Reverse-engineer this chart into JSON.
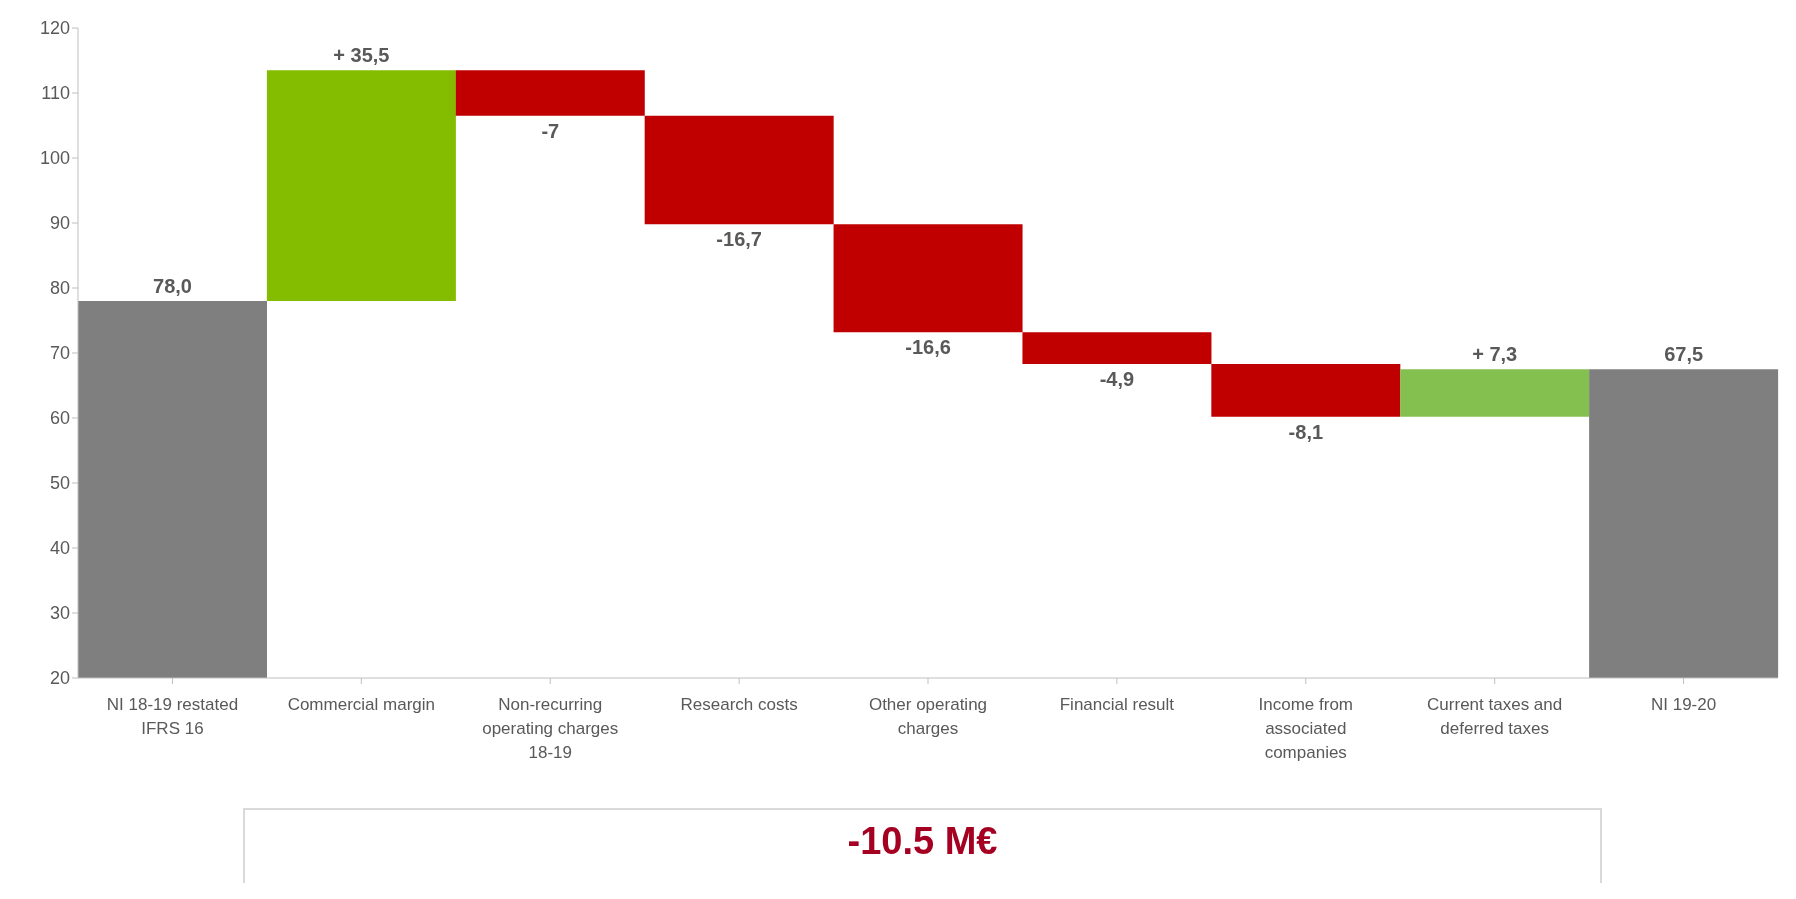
{
  "chart_data": {
    "type": "bar",
    "categories": [
      "NI 18-19 restated IFRS 16",
      "Commercial margin",
      "Non-recurring operating charges 18-19",
      "Research costs",
      "Other operating charges",
      "Financial result",
      "Income from associated companies",
      "Current taxes and deferred taxes",
      "NI 19-20"
    ],
    "values": [
      78.0,
      35.5,
      -7,
      -16.7,
      -16.6,
      -4.9,
      -8.1,
      7.3,
      67.5
    ],
    "base": [
      null,
      78.0,
      113.5,
      106.5,
      89.8,
      73.2,
      68.3,
      60.2,
      null
    ],
    "colors": [
      "#7f7f7f",
      "#84bd00",
      "#c00000",
      "#c00000",
      "#c00000",
      "#c00000",
      "#c00000",
      "#84c050",
      "#7f7f7f"
    ],
    "value_labels": [
      "78,0",
      "+ 35,5",
      "-7",
      "-16,7",
      "-16,6",
      "-4,9",
      "-8,1",
      "+ 7,3",
      "67,5"
    ],
    "ylim": [
      20,
      120
    ],
    "yticks": [
      20,
      30,
      40,
      50,
      60,
      70,
      80,
      90,
      100,
      110,
      120
    ],
    "grid": false,
    "annotations": [
      "-10.5 M€"
    ]
  }
}
